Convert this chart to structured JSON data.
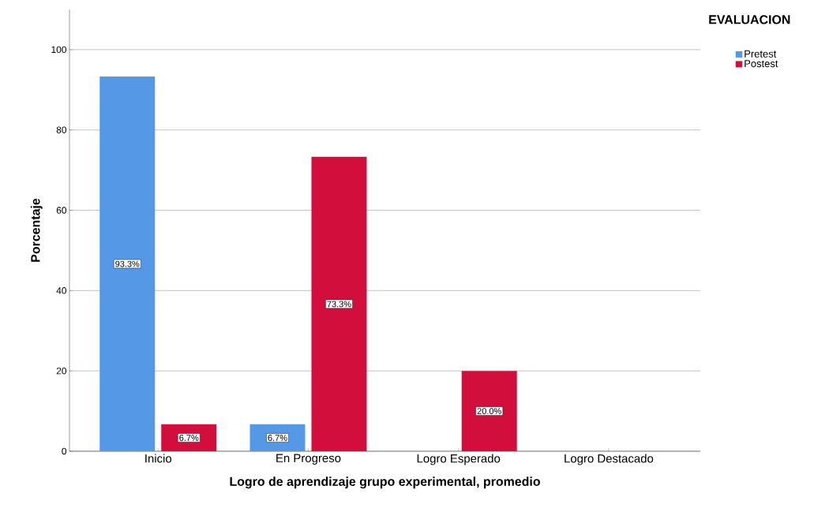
{
  "chart_data": {
    "type": "bar",
    "xlabel": "Logro de aprendizaje grupo experimental, promedio",
    "ylabel": "Porcentaje",
    "categories": [
      "Inicio",
      "En Progreso",
      "Logro Esperado",
      "Logro Destacado"
    ],
    "series": [
      {
        "name": "Pretest",
        "color": "#5599e6",
        "values": [
          93.3,
          6.7,
          null,
          null
        ],
        "value_labels": [
          "93.3%",
          "6.7%",
          null,
          null
        ]
      },
      {
        "name": "Postest",
        "color": "#d20f3c",
        "values": [
          6.7,
          73.3,
          20.0,
          null
        ],
        "value_labels": [
          "6.7%",
          "73.3%",
          "20.0%",
          null
        ]
      }
    ],
    "ylim": [
      0,
      110
    ],
    "yticks": [
      0,
      20,
      40,
      60,
      80,
      100
    ],
    "grid": "y",
    "legend": "top right",
    "legend_title": "EVALUACION"
  }
}
